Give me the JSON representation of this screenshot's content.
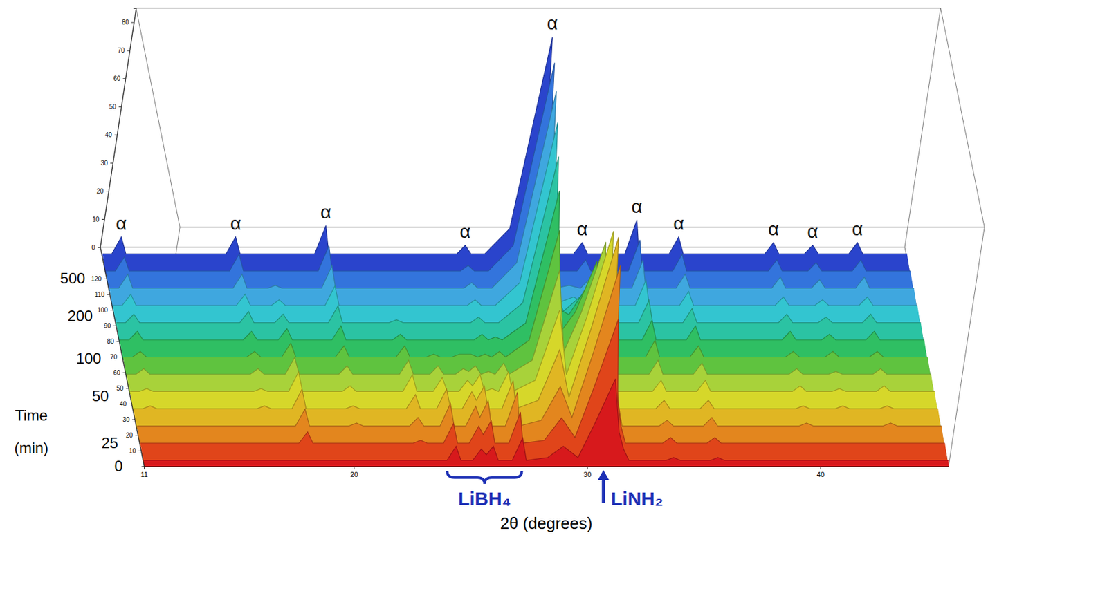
{
  "chart_data": {
    "type": "waterfall",
    "x_label": "2θ (degrees)",
    "z_label": "Time (min)",
    "x": [
      11,
      11.4,
      11.7,
      12,
      16.3,
      16.6,
      16.9,
      17.8,
      18.1,
      18.4,
      20.1,
      20.4,
      20.7,
      22.7,
      23,
      23.3,
      24,
      24.3,
      24.6,
      25.1,
      25.4,
      25.65,
      25.9,
      26.2,
      26.5,
      26.8,
      27.1,
      27.4,
      28.3,
      28.9,
      29.6,
      30.1,
      30.7,
      31.2,
      31.5,
      31.8,
      33.4,
      33.7,
      34,
      35.3,
      35.6,
      35.9,
      39.4,
      39.7,
      40,
      41.1,
      41.4,
      41.7,
      43,
      43.3,
      43.6,
      45.5
    ],
    "xlim": [
      11,
      45.5
    ],
    "xticks": [
      11,
      20,
      30,
      40
    ],
    "ylim": [
      0,
      85
    ],
    "yticks": [
      0,
      10,
      20,
      30,
      40,
      50,
      60,
      70,
      80
    ],
    "zlim": [
      0,
      140
    ],
    "zticks": [
      10,
      20,
      30,
      40,
      50,
      60,
      70,
      80,
      90,
      100,
      110,
      120
    ],
    "time_ticks": [
      {
        "value": 0,
        "label": "0"
      },
      {
        "value": 15,
        "label": "25"
      },
      {
        "value": 45,
        "label": "50"
      },
      {
        "value": 69,
        "label": "100"
      },
      {
        "value": 96,
        "label": "200"
      },
      {
        "value": 120,
        "label": "500"
      }
    ],
    "series": [
      {
        "z": 2,
        "color": "#d7191c",
        "values": [
          1,
          1,
          1,
          1,
          1,
          1,
          1,
          1,
          1,
          1,
          1,
          1,
          1,
          1,
          1,
          1,
          1,
          6,
          1,
          1,
          5,
          3,
          6,
          1,
          1,
          1,
          9,
          1,
          2,
          6,
          2,
          14,
          30,
          11,
          5,
          1,
          1,
          2,
          1,
          1,
          2,
          1,
          1,
          1,
          1,
          1,
          1,
          1,
          1,
          1,
          1,
          1
        ]
      },
      {
        "z": 13,
        "color": "#e0451a",
        "values": [
          1,
          1,
          1,
          1,
          1,
          1,
          1,
          1,
          5,
          1,
          1,
          1,
          1,
          1,
          2,
          1,
          1,
          8,
          1,
          1,
          7,
          4,
          9,
          1,
          1,
          1,
          12,
          1,
          2,
          10,
          3,
          21,
          45,
          16,
          7,
          1,
          1,
          3,
          1,
          1,
          3,
          1,
          1,
          1,
          1,
          1,
          1,
          1,
          1,
          1,
          1,
          1
        ]
      },
      {
        "z": 24,
        "color": "#e3861e",
        "values": [
          1,
          1,
          1,
          1,
          1,
          1,
          1,
          1,
          7,
          1,
          1,
          2,
          1,
          1,
          4,
          1,
          1,
          9,
          1,
          1,
          8,
          4,
          10,
          1,
          1,
          1,
          13,
          1,
          3,
          15,
          4,
          27,
          58,
          21,
          9,
          1,
          1,
          3,
          1,
          1,
          4,
          1,
          1,
          2,
          1,
          1,
          1,
          1,
          1,
          2,
          1,
          1
        ]
      },
      {
        "z": 35,
        "color": "#e0b623",
        "values": [
          1,
          1,
          2,
          1,
          1,
          2,
          1,
          1,
          8,
          1,
          1,
          2,
          1,
          1,
          6,
          1,
          1,
          8,
          1,
          1,
          7,
          4,
          9,
          1,
          1,
          1,
          11,
          1,
          4,
          22,
          5,
          29,
          62,
          23,
          10,
          1,
          1,
          4,
          1,
          1,
          4,
          1,
          1,
          2,
          1,
          1,
          2,
          1,
          1,
          2,
          1,
          1
        ]
      },
      {
        "z": 46,
        "color": "#d6d72a",
        "values": [
          1,
          1,
          2,
          1,
          1,
          2,
          1,
          1,
          8,
          1,
          1,
          3,
          1,
          1,
          7,
          1,
          1,
          6,
          1,
          1,
          5,
          3,
          7,
          1,
          2,
          1,
          8,
          1,
          5,
          30,
          7,
          27,
          58,
          21,
          9,
          1,
          1,
          5,
          1,
          1,
          5,
          1,
          1,
          3,
          1,
          1,
          2,
          1,
          1,
          3,
          1,
          1
        ]
      },
      {
        "z": 57,
        "color": "#a8d23a",
        "values": [
          1,
          1,
          3,
          1,
          1,
          3,
          1,
          1,
          7,
          1,
          1,
          4,
          1,
          1,
          6,
          1,
          1,
          4,
          1,
          1,
          3,
          2,
          4,
          1,
          2,
          1,
          5,
          1,
          6,
          38,
          9,
          23,
          48,
          18,
          8,
          1,
          1,
          6,
          1,
          1,
          5,
          1,
          1,
          3,
          1,
          1,
          2,
          1,
          1,
          3,
          1,
          1
        ]
      },
      {
        "z": 68,
        "color": "#5fc33f",
        "values": [
          1,
          1,
          3,
          1,
          1,
          3,
          1,
          1,
          6,
          1,
          1,
          5,
          1,
          1,
          5,
          1,
          1,
          2,
          1,
          1,
          2,
          2,
          2,
          1,
          2,
          1,
          3,
          1,
          7,
          46,
          10,
          17,
          35,
          13,
          6,
          1,
          1,
          7,
          1,
          1,
          5,
          1,
          1,
          3,
          1,
          1,
          3,
          1,
          1,
          3,
          1,
          1
        ]
      },
      {
        "z": 79,
        "color": "#2fbf63",
        "values": [
          1,
          1,
          4,
          1,
          1,
          4,
          1,
          1,
          5,
          1,
          1,
          6,
          1,
          1,
          3,
          1,
          1,
          1,
          1,
          1,
          1,
          1,
          1,
          1,
          3,
          1,
          2,
          1,
          7,
          54,
          12,
          10,
          20,
          8,
          4,
          1,
          1,
          8,
          1,
          1,
          6,
          1,
          1,
          4,
          1,
          1,
          3,
          1,
          1,
          4,
          1,
          1
        ]
      },
      {
        "z": 90,
        "color": "#2bc3a3",
        "values": [
          1,
          1,
          4,
          1,
          1,
          5,
          1,
          1,
          4,
          1,
          1,
          7,
          1,
          1,
          2,
          1,
          1,
          1,
          1,
          1,
          1,
          1,
          1,
          1,
          3,
          1,
          1,
          1,
          8,
          60,
          13,
          5,
          10,
          4,
          4,
          1,
          1,
          9,
          1,
          1,
          6,
          1,
          1,
          4,
          1,
          1,
          3,
          1,
          1,
          4,
          1,
          1
        ]
      },
      {
        "z": 101,
        "color": "#33c5d0",
        "values": [
          1,
          1,
          5,
          1,
          1,
          5,
          1,
          1,
          3,
          1,
          1,
          8,
          1,
          1,
          1,
          1,
          1,
          1,
          1,
          1,
          1,
          1,
          1,
          1,
          3,
          1,
          1,
          1,
          9,
          66,
          14,
          2,
          4,
          2,
          4,
          1,
          1,
          10,
          1,
          1,
          6,
          1,
          1,
          4,
          1,
          1,
          3,
          1,
          1,
          4,
          1,
          1
        ]
      },
      {
        "z": 112,
        "color": "#3fa7df",
        "values": [
          1,
          1,
          6,
          1,
          1,
          6,
          1,
          1,
          2,
          1,
          1,
          9,
          1,
          1,
          1,
          1,
          1,
          1,
          1,
          1,
          1,
          1,
          1,
          1,
          3,
          1,
          1,
          1,
          10,
          71,
          15,
          1,
          2,
          1,
          4,
          1,
          1,
          11,
          1,
          1,
          6,
          1,
          1,
          5,
          1,
          1,
          4,
          1,
          1,
          5,
          1,
          1
        ]
      },
      {
        "z": 123,
        "color": "#3374dc",
        "values": [
          1,
          1,
          6,
          1,
          1,
          7,
          1,
          1,
          1,
          1,
          1,
          10,
          1,
          1,
          1,
          1,
          1,
          1,
          1,
          1,
          1,
          1,
          1,
          1,
          3,
          1,
          1,
          1,
          10,
          75,
          16,
          1,
          1,
          1,
          5,
          1,
          1,
          12,
          1,
          1,
          7,
          1,
          1,
          5,
          1,
          1,
          4,
          1,
          1,
          5,
          1,
          1
        ]
      },
      {
        "z": 134,
        "color": "#2a44cc",
        "values": [
          1,
          1,
          7,
          1,
          1,
          7,
          1,
          1,
          1,
          1,
          1,
          11,
          1,
          1,
          1,
          1,
          1,
          1,
          1,
          1,
          1,
          1,
          1,
          1,
          4,
          1,
          1,
          1,
          10,
          78,
          17,
          1,
          1,
          1,
          5,
          1,
          1,
          13,
          1,
          1,
          7,
          1,
          1,
          5,
          1,
          1,
          4,
          1,
          1,
          5,
          1,
          1
        ]
      }
    ],
    "annotations": [
      {
        "text": "α",
        "x": 11.7
      },
      {
        "text": "α",
        "x": 16.6
      },
      {
        "text": "α",
        "x": 20.4
      },
      {
        "text": "α",
        "x": 26.5
      },
      {
        "text": "α",
        "x": 28.9
      },
      {
        "text": "α",
        "x": 31.5
      },
      {
        "text": "α",
        "x": 33.7
      },
      {
        "text": "α",
        "x": 35.6
      },
      {
        "text": "α",
        "x": 39.7
      },
      {
        "text": "α",
        "x": 41.4
      },
      {
        "text": "α",
        "x": 43.3
      },
      {
        "text": "LiBH₄",
        "x": [
          24,
          27.2
        ],
        "marker": "brace"
      },
      {
        "text": "LiNH₂",
        "x": 30.7,
        "marker": "arrow"
      }
    ]
  }
}
